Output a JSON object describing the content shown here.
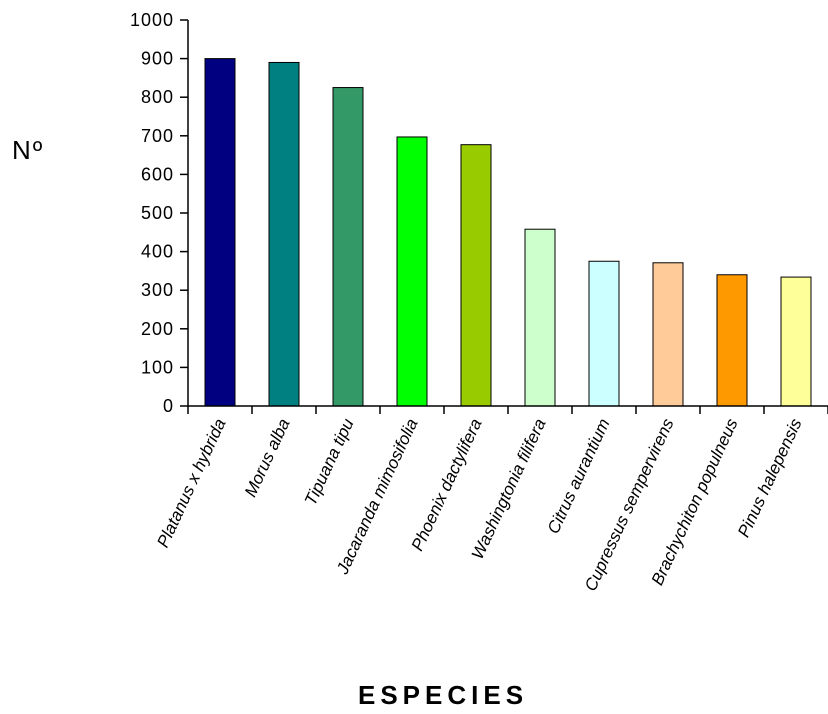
{
  "chart_data": {
    "type": "bar",
    "title": "",
    "xlabel": "ESPECIES",
    "ylabel": "Nº",
    "ylim": [
      0,
      1000
    ],
    "yticks": [
      "0",
      "100",
      "200",
      "300",
      "400",
      "500",
      "600",
      "700",
      "800",
      "900",
      "1000"
    ],
    "grid": false,
    "legend": "none",
    "categories": [
      "Platanus x hybrida",
      "Morus alba",
      "Tipuana tipu",
      "Jacaranda mimosifolia",
      "Phoenix dactylifera",
      "Washingtonia filifera",
      "Citrus aurantium",
      "Cupressus sempervirens",
      "Brachychiton populneus",
      "Pinus halepensis"
    ],
    "values": [
      900,
      890,
      825,
      697,
      677,
      458,
      375,
      371,
      340,
      334
    ],
    "colors": [
      "#000080",
      "#008080",
      "#339966",
      "#00ff00",
      "#99cc00",
      "#ccffcc",
      "#ccffff",
      "#ffcc99",
      "#ff9900",
      "#ffff99"
    ]
  }
}
